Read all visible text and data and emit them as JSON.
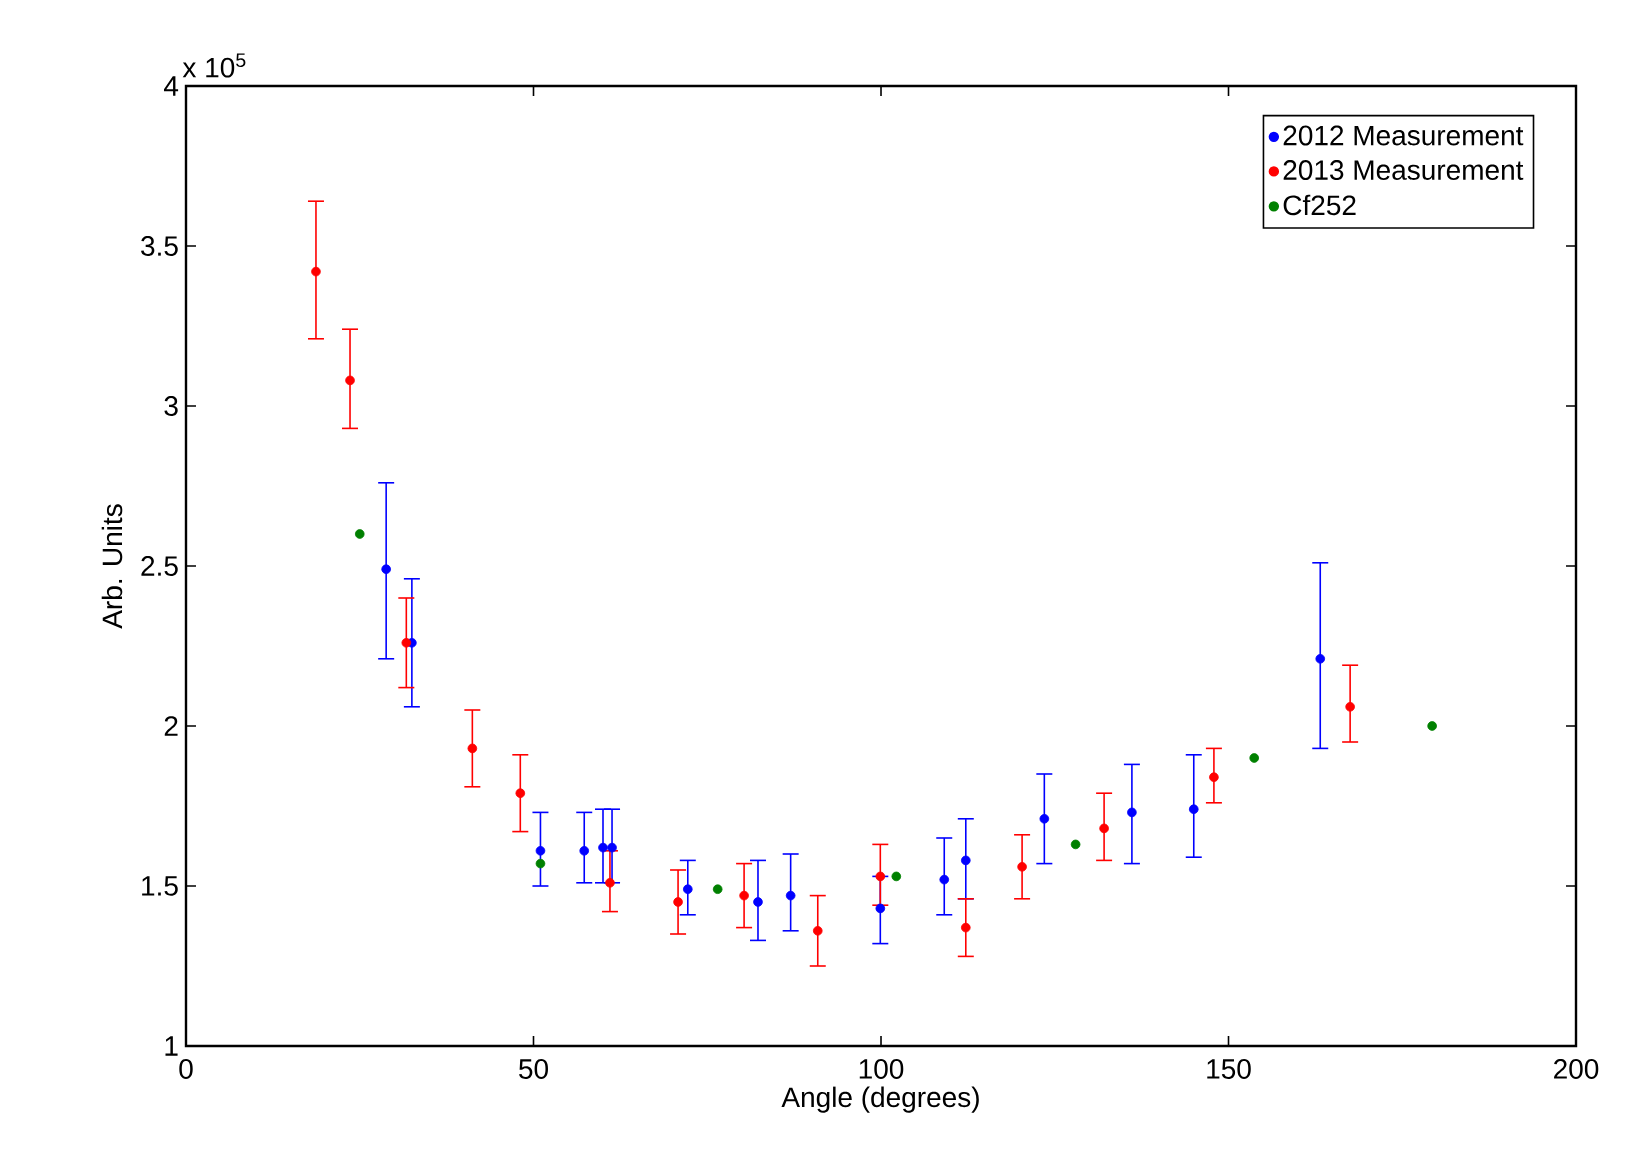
{
  "chart_data": {
    "type": "scatter",
    "xlabel": "Angle (degrees)",
    "ylabel": "Arb. Units",
    "annotations": [
      "x 10$^{5}$"
    ],
    "xlim": [
      0,
      200
    ],
    "xticks": [
      0,
      50,
      100,
      150,
      200
    ],
    "ylim": [
      1,
      4
    ],
    "yticks": [
      1,
      1.5,
      2,
      2.5,
      3,
      3.5,
      4
    ],
    "marker": "circle",
    "legend": "top right",
    "grid": false,
    "series": [
      {
        "name": "2012 Measurement",
        "color": "#0000ff",
        "x": [
          28.8,
          32.5,
          51,
          57.3,
          60,
          61.3,
          72.2,
          82.3,
          87,
          99.9,
          109.1,
          112.2,
          123.5,
          136.1,
          145,
          163.2
        ],
        "values": [
          2.49,
          2.26,
          1.61,
          1.61,
          1.62,
          1.62,
          1.49,
          1.45,
          1.47,
          1.43,
          1.52,
          1.58,
          1.71,
          1.73,
          1.74,
          2.21
        ],
        "errors": [
          [
            2.21,
            2.76
          ],
          [
            2.06,
            2.46
          ],
          [
            1.5,
            1.73
          ],
          [
            1.51,
            1.73
          ],
          [
            1.51,
            1.74
          ],
          [
            1.51,
            1.74
          ],
          [
            1.41,
            1.58
          ],
          [
            1.33,
            1.58
          ],
          [
            1.36,
            1.6
          ],
          [
            1.32,
            1.53
          ],
          [
            1.41,
            1.65
          ],
          [
            1.46,
            1.71
          ],
          [
            1.57,
            1.85
          ],
          [
            1.57,
            1.88
          ],
          [
            1.59,
            1.91
          ],
          [
            1.93,
            2.51
          ]
        ]
      },
      {
        "name": "2013 Measurement",
        "color": "#ff0000",
        "x": [
          18.7,
          23.6,
          31.7,
          41.2,
          48.1,
          61,
          70.8,
          80.3,
          90.9,
          99.9,
          112.2,
          120.3,
          132.1,
          147.9,
          167.5
        ],
        "values": [
          3.42,
          3.08,
          2.26,
          1.93,
          1.79,
          1.51,
          1.45,
          1.47,
          1.36,
          1.53,
          1.37,
          1.56,
          1.68,
          1.84,
          2.06
        ],
        "errors": [
          [
            3.21,
            3.64
          ],
          [
            2.93,
            3.24
          ],
          [
            2.12,
            2.4
          ],
          [
            1.81,
            2.05
          ],
          [
            1.67,
            1.91
          ],
          [
            1.42,
            1.61
          ],
          [
            1.35,
            1.55
          ],
          [
            1.37,
            1.57
          ],
          [
            1.25,
            1.47
          ],
          [
            1.44,
            1.63
          ],
          [
            1.28,
            1.46
          ],
          [
            1.46,
            1.66
          ],
          [
            1.58,
            1.79
          ],
          [
            1.76,
            1.93
          ],
          [
            1.95,
            2.19
          ]
        ]
      },
      {
        "name": "Cf252",
        "color": "#008000",
        "x": [
          25,
          51,
          76.5,
          102.2,
          128,
          153.7,
          179.3
        ],
        "values": [
          2.6,
          1.57,
          1.49,
          1.53,
          1.63,
          1.9,
          2.0
        ]
      }
    ]
  }
}
